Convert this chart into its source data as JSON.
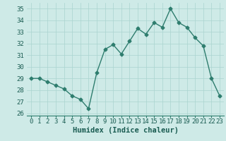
{
  "x": [
    0,
    1,
    2,
    3,
    4,
    5,
    6,
    7,
    8,
    9,
    10,
    11,
    12,
    13,
    14,
    15,
    16,
    17,
    18,
    19,
    20,
    21,
    22,
    23
  ],
  "y": [
    29.0,
    29.0,
    28.7,
    28.4,
    28.1,
    27.5,
    27.2,
    26.4,
    29.5,
    31.5,
    31.9,
    31.1,
    32.2,
    33.3,
    32.8,
    33.8,
    33.4,
    35.0,
    33.8,
    33.4,
    32.5,
    31.8,
    29.0,
    27.5
  ],
  "line_color": "#2e7d6e",
  "marker": "D",
  "marker_size": 2.5,
  "background_color": "#ceeae7",
  "grid_color": "#aad4d0",
  "xlabel": "Humidex (Indice chaleur)",
  "ylim": [
    25.8,
    35.5
  ],
  "yticks": [
    26,
    27,
    28,
    29,
    30,
    31,
    32,
    33,
    34,
    35
  ],
  "xticks": [
    0,
    1,
    2,
    3,
    4,
    5,
    6,
    7,
    8,
    9,
    10,
    11,
    12,
    13,
    14,
    15,
    16,
    17,
    18,
    19,
    20,
    21,
    22,
    23
  ],
  "xlabel_fontsize": 7.5,
  "tick_fontsize": 6.5,
  "line_width": 1.0
}
